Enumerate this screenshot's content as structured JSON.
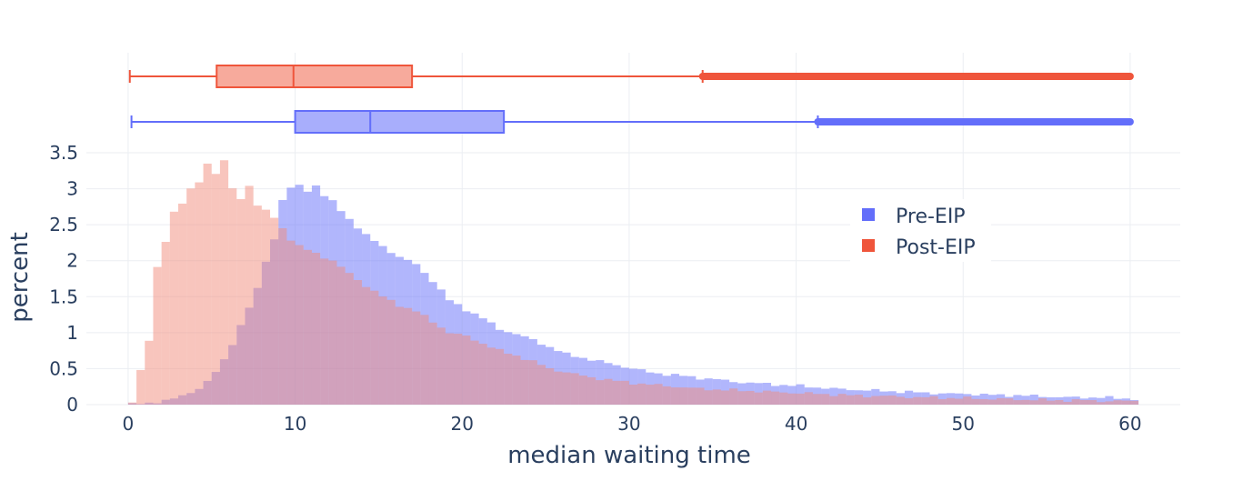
{
  "chart_data": {
    "type": "histogram",
    "xlabel": "median waiting time",
    "ylabel": "percent",
    "xlim": [
      -2.5,
      63
    ],
    "ylim": [
      0,
      3.5
    ],
    "grid": true,
    "bin_width": 0.5,
    "legend": {
      "placement": "top-right",
      "entries": [
        "Pre-EIP",
        "Post-EIP"
      ]
    },
    "xticks": [
      {
        "value": 0,
        "label": "0"
      },
      {
        "value": 10,
        "label": "10"
      },
      {
        "value": 20,
        "label": "20"
      },
      {
        "value": 30,
        "label": "30"
      },
      {
        "value": 40,
        "label": "40"
      },
      {
        "value": 50,
        "label": "50"
      },
      {
        "value": 60,
        "label": "60"
      }
    ],
    "yticks": [
      {
        "value": 0,
        "label": "0"
      },
      {
        "value": 0.5,
        "label": "0.5"
      },
      {
        "value": 1,
        "label": "1"
      },
      {
        "value": 1.5,
        "label": "1.5"
      },
      {
        "value": 2,
        "label": "2"
      },
      {
        "value": 2.5,
        "label": "2.5"
      },
      {
        "value": 3,
        "label": "3"
      },
      {
        "value": 3.5,
        "label": "3.5"
      }
    ],
    "series": [
      {
        "name": "Pre-EIP",
        "color": "#636efa",
        "fill": "#636efa",
        "box": {
          "min": 0.2,
          "q1": 10,
          "median": 14.5,
          "q3": 22.5,
          "whisker_high": 41.3,
          "outliers_to": 60
        },
        "anchors": [
          [
            0,
            0
          ],
          [
            0.5,
            0.01
          ],
          [
            1,
            0.02
          ],
          [
            1.5,
            0.04
          ],
          [
            2,
            0.06
          ],
          [
            2.5,
            0.08
          ],
          [
            3,
            0.12
          ],
          [
            3.5,
            0.17
          ],
          [
            4,
            0.23
          ],
          [
            4.5,
            0.32
          ],
          [
            5,
            0.45
          ],
          [
            5.5,
            0.62
          ],
          [
            6,
            0.85
          ],
          [
            6.5,
            1.1
          ],
          [
            7,
            1.35
          ],
          [
            7.5,
            1.6
          ],
          [
            8,
            2
          ],
          [
            8.5,
            2.3
          ],
          [
            9,
            2.85
          ],
          [
            9.5,
            3.0
          ],
          [
            10,
            3.05
          ],
          [
            10.5,
            2.97
          ],
          [
            11,
            3.05
          ],
          [
            11.5,
            2.9
          ],
          [
            12,
            2.82
          ],
          [
            13,
            2.58
          ],
          [
            14,
            2.35
          ],
          [
            15,
            2.2
          ],
          [
            16,
            2.05
          ],
          [
            17,
            1.95
          ],
          [
            18,
            1.72
          ],
          [
            19,
            1.45
          ],
          [
            20,
            1.32
          ],
          [
            21,
            1.2
          ],
          [
            22,
            1.05
          ],
          [
            23,
            0.98
          ],
          [
            24,
            0.9
          ],
          [
            25,
            0.8
          ],
          [
            26,
            0.7
          ],
          [
            27,
            0.65
          ],
          [
            28,
            0.6
          ],
          [
            29,
            0.55
          ],
          [
            30,
            0.5
          ],
          [
            31,
            0.45
          ],
          [
            32,
            0.42
          ],
          [
            33,
            0.4
          ],
          [
            34,
            0.37
          ],
          [
            35,
            0.35
          ],
          [
            36,
            0.32
          ],
          [
            37,
            0.3
          ],
          [
            38,
            0.29
          ],
          [
            39,
            0.27
          ],
          [
            40,
            0.26
          ],
          [
            41,
            0.24
          ],
          [
            42,
            0.22
          ],
          [
            43,
            0.21
          ],
          [
            44,
            0.2
          ],
          [
            45,
            0.19
          ],
          [
            46,
            0.18
          ],
          [
            47,
            0.17
          ],
          [
            48,
            0.16
          ],
          [
            49,
            0.15
          ],
          [
            50,
            0.15
          ],
          [
            51,
            0.14
          ],
          [
            52,
            0.13
          ],
          [
            53,
            0.13
          ],
          [
            54,
            0.12
          ],
          [
            55,
            0.11
          ],
          [
            56,
            0.1
          ],
          [
            57,
            0.1
          ],
          [
            58,
            0.1
          ],
          [
            59,
            0.09
          ],
          [
            60,
            0.08
          ]
        ]
      },
      {
        "name": "Post-EIP",
        "color": "#ef553b",
        "fill": "#f28b7b",
        "box": {
          "min": 0.1,
          "q1": 5.3,
          "median": 9.9,
          "q3": 17,
          "whisker_high": 34.4,
          "outliers_to": 60
        },
        "anchors": [
          [
            0,
            0.04
          ],
          [
            0.5,
            0.48
          ],
          [
            1,
            0.88
          ],
          [
            1.5,
            1.9
          ],
          [
            2,
            2.28
          ],
          [
            2.5,
            2.68
          ],
          [
            3,
            2.8
          ],
          [
            3.5,
            2.98
          ],
          [
            4,
            3.1
          ],
          [
            4.5,
            3.35
          ],
          [
            5,
            3.22
          ],
          [
            5.5,
            3.38
          ],
          [
            6,
            3.0
          ],
          [
            6.5,
            2.86
          ],
          [
            7,
            3.05
          ],
          [
            7.5,
            2.77
          ],
          [
            8,
            2.69
          ],
          [
            8.5,
            2.6
          ],
          [
            9,
            2.45
          ],
          [
            9.5,
            2.3
          ],
          [
            10,
            2.2
          ],
          [
            11,
            2.1
          ],
          [
            12,
            2.0
          ],
          [
            13,
            1.82
          ],
          [
            14,
            1.65
          ],
          [
            15,
            1.5
          ],
          [
            16,
            1.38
          ],
          [
            17,
            1.3
          ],
          [
            18,
            1.15
          ],
          [
            19,
            1.0
          ],
          [
            20,
            0.95
          ],
          [
            21,
            0.85
          ],
          [
            22,
            0.75
          ],
          [
            23,
            0.68
          ],
          [
            24,
            0.6
          ],
          [
            25,
            0.5
          ],
          [
            26,
            0.45
          ],
          [
            27,
            0.4
          ],
          [
            28,
            0.36
          ],
          [
            29,
            0.33
          ],
          [
            30,
            0.3
          ],
          [
            31,
            0.28
          ],
          [
            32,
            0.26
          ],
          [
            33,
            0.24
          ],
          [
            34,
            0.22
          ],
          [
            35,
            0.21
          ],
          [
            36,
            0.2
          ],
          [
            37,
            0.19
          ],
          [
            38,
            0.18
          ],
          [
            39,
            0.17
          ],
          [
            40,
            0.16
          ],
          [
            41,
            0.15
          ],
          [
            42,
            0.14
          ],
          [
            43,
            0.13
          ],
          [
            44,
            0.12
          ],
          [
            45,
            0.12
          ],
          [
            46,
            0.11
          ],
          [
            47,
            0.1
          ],
          [
            48,
            0.1
          ],
          [
            49,
            0.09
          ],
          [
            50,
            0.09
          ],
          [
            51,
            0.08
          ],
          [
            52,
            0.08
          ],
          [
            53,
            0.07
          ],
          [
            54,
            0.07
          ],
          [
            55,
            0.06
          ],
          [
            56,
            0.06
          ],
          [
            57,
            0.06
          ],
          [
            58,
            0.05
          ],
          [
            59,
            0.05
          ],
          [
            60,
            0.05
          ]
        ]
      }
    ]
  }
}
